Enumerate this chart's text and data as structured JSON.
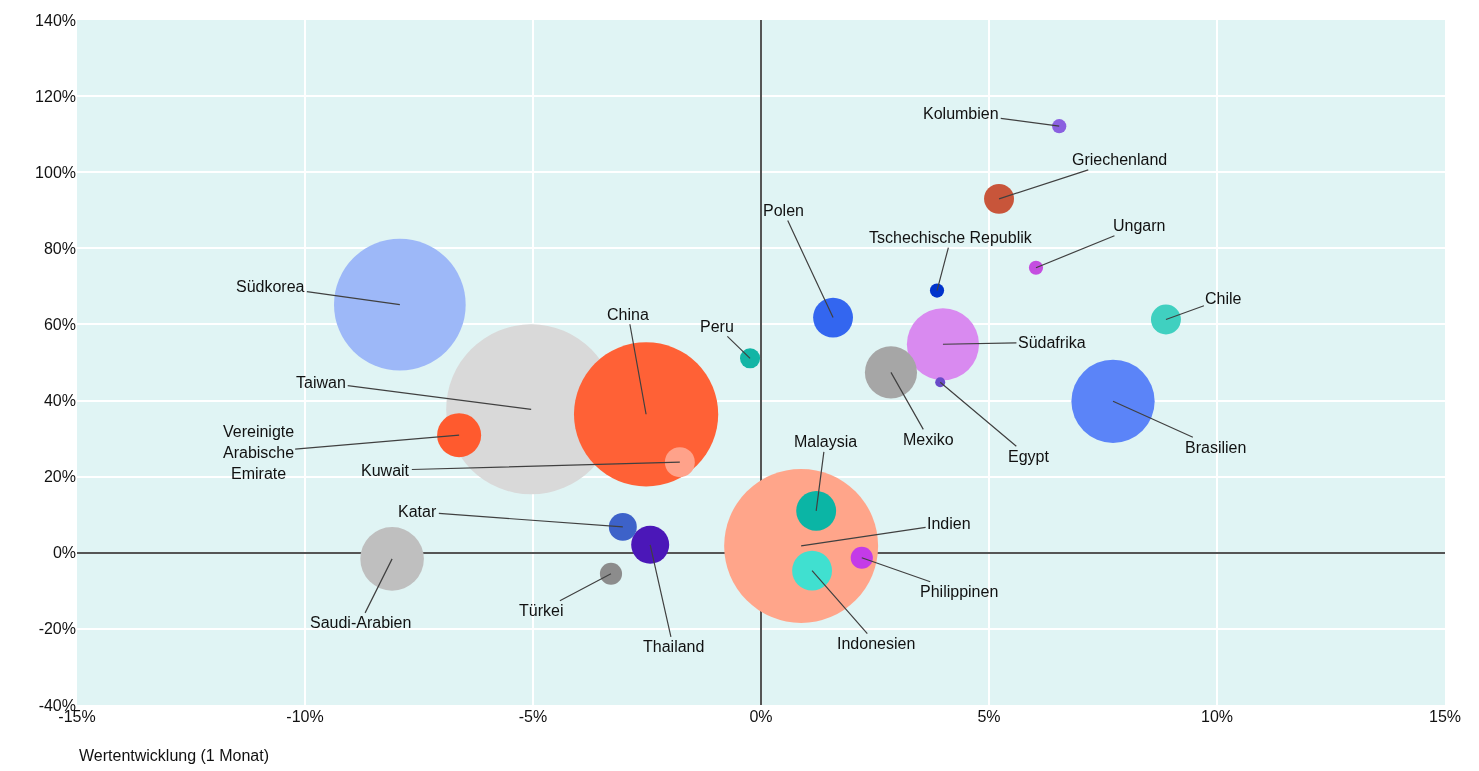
{
  "chart_data": {
    "type": "bubble",
    "xlabel": "Wertentwicklung (1 Monat)",
    "xlim": [
      -15,
      15
    ],
    "xticks": [
      {
        "value": -15,
        "label": "-15%"
      },
      {
        "value": -10,
        "label": "-10%"
      },
      {
        "value": -5,
        "label": "-5%"
      },
      {
        "value": 0,
        "label": "0%"
      },
      {
        "value": 5,
        "label": "5%"
      },
      {
        "value": 10,
        "label": "10%"
      },
      {
        "value": 15,
        "label": "15%"
      }
    ],
    "ylim": [
      -40,
      140
    ],
    "yticks": [
      {
        "value": -40,
        "label": "-40%"
      },
      {
        "value": -20,
        "label": "-20%"
      },
      {
        "value": 0,
        "label": "0%"
      },
      {
        "value": 20,
        "label": "20%"
      },
      {
        "value": 40,
        "label": "40%"
      },
      {
        "value": 60,
        "label": "60%"
      },
      {
        "value": 80,
        "label": "80%"
      },
      {
        "value": 100,
        "label": "100%"
      },
      {
        "value": 120,
        "label": "120%"
      },
      {
        "value": 140,
        "label": "140%"
      }
    ],
    "grid": true,
    "legend": false,
    "series": [
      {
        "name": "Taiwan",
        "color": "#d9d9d9",
        "x": [
          -5.04
        ],
        "values": [
          37.7
        ],
        "sizes": [
          1
        ]
      },
      {
        "name": "Indien",
        "color": "#ffa58a",
        "x": [
          0.88
        ],
        "values": [
          1.8
        ],
        "sizes": [
          0.82
        ]
      },
      {
        "name": "China",
        "color": "#ff6136",
        "x": [
          -2.52
        ],
        "values": [
          36.4
        ],
        "sizes": [
          0.72
        ]
      },
      {
        "name": "Südkorea",
        "color": "#9db8f8",
        "x": [
          -7.92
        ],
        "values": [
          65.2
        ],
        "sizes": [
          0.6
        ]
      },
      {
        "name": "Brasilien",
        "color": "#5b84f8",
        "x": [
          7.72
        ],
        "values": [
          39.8
        ],
        "sizes": [
          0.24
        ]
      },
      {
        "name": "Südafrika",
        "color": "#d98af0",
        "x": [
          3.99
        ],
        "values": [
          54.8
        ],
        "sizes": [
          0.18
        ]
      },
      {
        "name": "Saudi-Arabien",
        "color": "#bfbfbf",
        "x": [
          -8.09
        ],
        "values": [
          -1.6
        ],
        "sizes": [
          0.14
        ]
      },
      {
        "name": "Mexiko",
        "color": "#a6a6a6",
        "x": [
          2.85
        ],
        "values": [
          47.4
        ],
        "sizes": [
          0.094
        ]
      },
      {
        "name": "Vereinigte Arabische Emirate",
        "color": "#ff5a2e",
        "x": [
          -6.62
        ],
        "values": [
          30.9
        ],
        "sizes": [
          0.067
        ]
      },
      {
        "name": "Malaysia",
        "color": "#0bb5a5",
        "x": [
          1.21
        ],
        "values": [
          11.0
        ],
        "sizes": [
          0.055
        ]
      },
      {
        "name": "Indonesien",
        "color": "#40e0d0",
        "x": [
          1.12
        ],
        "values": [
          -4.7
        ],
        "sizes": [
          0.055
        ]
      },
      {
        "name": "Polen",
        "color": "#3366f0",
        "x": [
          1.58
        ],
        "values": [
          61.8
        ],
        "sizes": [
          0.055
        ]
      },
      {
        "name": "Thailand",
        "color": "#4b17b8",
        "x": [
          -2.43
        ],
        "values": [
          2.1
        ],
        "sizes": [
          0.05
        ]
      },
      {
        "name": "Kuwait",
        "color": "#ffa28a",
        "x": [
          -1.78
        ],
        "values": [
          23.8
        ],
        "sizes": [
          0.031
        ]
      },
      {
        "name": "Griechenland",
        "color": "#c8553a",
        "x": [
          5.22
        ],
        "values": [
          93.0
        ],
        "sizes": [
          0.031
        ]
      },
      {
        "name": "Chile",
        "color": "#40d0c0",
        "x": [
          8.88
        ],
        "values": [
          61.3
        ],
        "sizes": [
          0.031
        ]
      },
      {
        "name": "Katar",
        "color": "#3d62c9",
        "x": [
          -3.03
        ],
        "values": [
          6.8
        ],
        "sizes": [
          0.027
        ]
      },
      {
        "name": "Türkei",
        "color": "#8c8c8c",
        "x": [
          -3.29
        ],
        "values": [
          -5.5
        ],
        "sizes": [
          0.017
        ]
      },
      {
        "name": "Philippinen",
        "color": "#c43be8",
        "x": [
          2.21
        ],
        "values": [
          -1.3
        ],
        "sizes": [
          0.017
        ]
      },
      {
        "name": "Peru",
        "color": "#13b5a5",
        "x": [
          -0.24
        ],
        "values": [
          51.1
        ],
        "sizes": [
          0.014
        ]
      },
      {
        "name": "Tschechische Republik",
        "color": "#0033cc",
        "x": [
          3.86
        ],
        "values": [
          68.9
        ],
        "sizes": [
          0.007
        ]
      },
      {
        "name": "Ungarn",
        "color": "#c44ee0",
        "x": [
          6.03
        ],
        "values": [
          74.9
        ],
        "sizes": [
          0.007
        ]
      },
      {
        "name": "Kolumbien",
        "color": "#8a60e0",
        "x": [
          6.54
        ],
        "values": [
          112.1
        ],
        "sizes": [
          0.007
        ]
      },
      {
        "name": "Egypt",
        "color": "#6a4bc9",
        "x": [
          3.93
        ],
        "values": [
          44.8
        ],
        "sizes": [
          0.0035
        ]
      }
    ]
  }
}
